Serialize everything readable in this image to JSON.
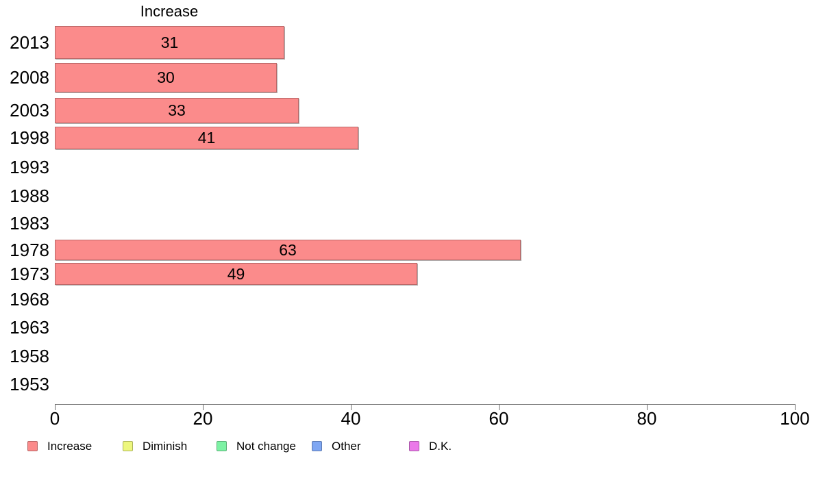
{
  "chart_data": {
    "type": "bar",
    "orientation": "horizontal",
    "title": "Increase",
    "categories": [
      "2013",
      "2008",
      "2003",
      "1998",
      "1993",
      "1988",
      "1983",
      "1978",
      "1973",
      "1968",
      "1963",
      "1958",
      "1953"
    ],
    "values": [
      31,
      30,
      33,
      41,
      null,
      null,
      null,
      63,
      49,
      null,
      null,
      null,
      null
    ],
    "bar_color": "#FB8B8B",
    "xlim": [
      0,
      100
    ],
    "x_ticks": [
      "0",
      "20",
      "40",
      "60",
      "80",
      "100"
    ],
    "grid": "off",
    "legend_position": "bottom",
    "legend": [
      {
        "label": "Increase",
        "color": "#FB8B8B"
      },
      {
        "label": "Diminish",
        "color": "#EDF77E"
      },
      {
        "label": "Not change",
        "color": "#7DF2A4"
      },
      {
        "label": "Other",
        "color": "#7FA7F3"
      },
      {
        "label": "D.K.",
        "color": "#EB79E9"
      }
    ]
  }
}
